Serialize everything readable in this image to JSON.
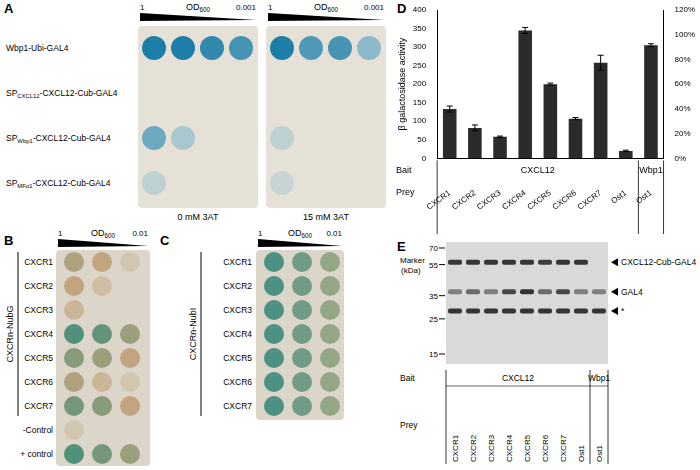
{
  "panels": {
    "A": {
      "letter": "A",
      "od": {
        "prefix": "OD",
        "sub": "600"
      },
      "dilution": [
        "1",
        "0.001"
      ],
      "rows": [
        {
          "prefix": "Wbp1-Ubi-GAL4"
        },
        {
          "prefix": "SP",
          "sub": "CXCL12",
          "suffix": "-CXCL12-Cub-GAL4"
        },
        {
          "prefix": "SP",
          "sub": "Wbp1",
          "suffix": "-CXCL12-Cub-GAL4"
        },
        {
          "prefix": "SP",
          "sub": "MFα1",
          "suffix": "-CXCL12-Cub-GAL4"
        }
      ],
      "plates": [
        {
          "label": "0 mM 3AT",
          "spots": [
            [
              1,
              1,
              0.9,
              0.8
            ],
            [
              0,
              0,
              0,
              0
            ],
            [
              0.6,
              0.3,
              0,
              0
            ],
            [
              0.2,
              0,
              0,
              0
            ]
          ]
        },
        {
          "label": "15 mM 3AT",
          "spots": [
            [
              1,
              0.75,
              0.8,
              0.45
            ],
            [
              0,
              0,
              0,
              0
            ],
            [
              0.2,
              0,
              0,
              0
            ],
            [
              0.15,
              0,
              0,
              0
            ]
          ]
        }
      ]
    },
    "B": {
      "letter": "B",
      "od": {
        "prefix": "OD",
        "sub": "600"
      },
      "dilution": [
        "1",
        "0.01"
      ],
      "group_label": "CXCRn-NubG",
      "rows": [
        {
          "label": "CXCR1",
          "spots": [
            0.4,
            0.3,
            0.1
          ]
        },
        {
          "label": "CXCR2",
          "spots": [
            0.3,
            0.15,
            0
          ]
        },
        {
          "label": "CXCR3",
          "spots": [
            0.2,
            0,
            0
          ]
        },
        {
          "label": "CXCR4",
          "spots": [
            0.9,
            0.8,
            0.5
          ]
        },
        {
          "label": "CXCR5",
          "spots": [
            0.6,
            0.5,
            0.3
          ]
        },
        {
          "label": "CXCR6",
          "spots": [
            0.4,
            0.2,
            0.1
          ]
        },
        {
          "label": "CXCR7",
          "spots": [
            0.7,
            0.6,
            0.3
          ]
        }
      ],
      "controls": [
        {
          "label": "-Control",
          "spots": [
            0.1,
            0,
            0
          ]
        },
        {
          "label": "+ control",
          "spots": [
            0.9,
            0.7,
            0.5
          ]
        }
      ]
    },
    "C": {
      "letter": "C",
      "od": {
        "prefix": "OD",
        "sub": "600"
      },
      "dilution": [
        "1",
        "0.01"
      ],
      "group_label": "CXCRn-NubI",
      "rows": [
        {
          "label": "CXCR1",
          "spots": [
            0.9,
            0.7,
            0.5
          ]
        },
        {
          "label": "CXCR2",
          "spots": [
            0.9,
            0.7,
            0.5
          ]
        },
        {
          "label": "CXCR3",
          "spots": [
            0.9,
            0.7,
            0.5
          ]
        },
        {
          "label": "CXCR4",
          "spots": [
            0.9,
            0.7,
            0.5
          ]
        },
        {
          "label": "CXCR5",
          "spots": [
            0.9,
            0.7,
            0.5
          ]
        },
        {
          "label": "CXCR6",
          "spots": [
            0.9,
            0.7,
            0.5
          ]
        },
        {
          "label": "CXCR7",
          "spots": [
            0.9,
            0.7,
            0.5
          ]
        }
      ]
    },
    "E": {
      "letter": "E",
      "marker_title": [
        "Marker",
        "(kDa)"
      ],
      "markers": [
        70,
        55,
        35,
        25,
        15
      ],
      "bands": [
        {
          "label": "CXCL12-Cub-GAL4",
          "kda": 57,
          "intensity": [
            0.9,
            0.9,
            0.9,
            0.9,
            0.9,
            0.85,
            0.9,
            0.9,
            0
          ]
        },
        {
          "label": "GAL4",
          "kda": 37,
          "intensity": [
            0.5,
            0.6,
            0.5,
            0.8,
            0.9,
            0.6,
            0.8,
            0.5,
            0.5
          ]
        },
        {
          "label": "*",
          "kda": 28,
          "intensity": [
            0.9,
            0.9,
            0.9,
            0.9,
            0.9,
            0.9,
            0.9,
            0.9,
            0.9
          ]
        }
      ],
      "bait": {
        "label": "Bait",
        "groups": [
          {
            "text": "CXCL12",
            "span": 8
          },
          {
            "text": "Wbp1",
            "span": 1
          }
        ]
      },
      "prey_label": "Prey",
      "prey": [
        "CXCR1",
        "CXCR2",
        "CXCR3",
        "CXCR4",
        "CXCR5",
        "CXCR6",
        "CXCR7",
        "Ost1",
        "Ost1"
      ]
    }
  },
  "chart_data": {
    "type": "bar",
    "panel": "D",
    "categories": [
      "CXCR1",
      "CXCR2",
      "CXCR3",
      "CXCR4",
      "CXCR5",
      "CXCR6",
      "CXCR7",
      "Ost1",
      "Ost1"
    ],
    "values": [
      133,
      82,
      58,
      345,
      200,
      107,
      258,
      20,
      305
    ],
    "errors": [
      8,
      8,
      2,
      8,
      3,
      3,
      20,
      2,
      4
    ],
    "color": "#2b2b2b",
    "y_label": "β galactosidase activity",
    "ylim": [
      0,
      400
    ],
    "yticks": [
      0,
      50,
      100,
      150,
      200,
      250,
      300,
      350,
      400
    ],
    "y2lim": [
      0,
      120
    ],
    "y2ticks": [
      {
        "value": 0,
        "label": "0%"
      },
      {
        "value": 20,
        "label": "20%"
      },
      {
        "value": 40,
        "label": "40%"
      },
      {
        "value": 60,
        "label": "60%"
      },
      {
        "value": 80,
        "label": "80%"
      },
      {
        "value": 100,
        "label": "100%"
      },
      {
        "value": 120,
        "label": "120%"
      }
    ],
    "grid": false,
    "bait": {
      "label": "Bait",
      "groups": [
        {
          "text": "CXCL12",
          "span": 8
        },
        {
          "text": "Wbp1",
          "span": 1
        }
      ]
    },
    "prey_label": "Prey"
  }
}
